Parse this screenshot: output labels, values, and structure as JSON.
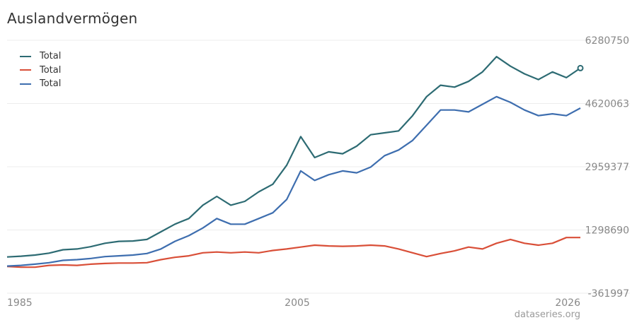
{
  "title": "Auslandvermögen",
  "credit": "dataseries.org",
  "colors": {
    "grid": "#ececec",
    "tick_text": "#888888"
  },
  "chart_data": {
    "type": "line",
    "title": "Auslandvermögen",
    "xlabel": "",
    "ylabel": "",
    "xlim": [
      1985,
      2026
    ],
    "ylim": [
      -361997,
      6280750
    ],
    "x_ticks": [
      "1985",
      "2005",
      "2026"
    ],
    "y_ticks": [
      "6280750",
      "4620063",
      "2959377",
      "1298690",
      "-361997"
    ],
    "y_tick_values": [
      6280750,
      4620063,
      2959377,
      1298690,
      -361997
    ],
    "grid": true,
    "legend_position": "top-left",
    "series": [
      {
        "name": "Total",
        "color": "#2d6b73",
        "points": [
          [
            1985,
            590000
          ],
          [
            1986,
            610000
          ],
          [
            1987,
            640000
          ],
          [
            1988,
            690000
          ],
          [
            1989,
            780000
          ],
          [
            1990,
            800000
          ],
          [
            1991,
            860000
          ],
          [
            1992,
            950000
          ],
          [
            1993,
            1000000
          ],
          [
            1994,
            1010000
          ],
          [
            1995,
            1050000
          ],
          [
            1996,
            1250000
          ],
          [
            1997,
            1450000
          ],
          [
            1998,
            1600000
          ],
          [
            1999,
            1950000
          ],
          [
            2000,
            2180000
          ],
          [
            2001,
            1950000
          ],
          [
            2002,
            2050000
          ],
          [
            2003,
            2300000
          ],
          [
            2004,
            2500000
          ],
          [
            2005,
            3000000
          ],
          [
            2006,
            3750000
          ],
          [
            2007,
            3200000
          ],
          [
            2008,
            3350000
          ],
          [
            2009,
            3300000
          ],
          [
            2010,
            3500000
          ],
          [
            2011,
            3800000
          ],
          [
            2012,
            3850000
          ],
          [
            2013,
            3900000
          ],
          [
            2014,
            4300000
          ],
          [
            2015,
            4800000
          ],
          [
            2016,
            5100000
          ],
          [
            2017,
            5050000
          ],
          [
            2018,
            5200000
          ],
          [
            2019,
            5450000
          ],
          [
            2020,
            5850000
          ],
          [
            2021,
            5600000
          ],
          [
            2022,
            5400000
          ],
          [
            2023,
            5250000
          ],
          [
            2024,
            5450000
          ],
          [
            2025,
            5300000
          ],
          [
            2026,
            5550000
          ]
        ]
      },
      {
        "name": "Total",
        "color": "#d94f38",
        "points": [
          [
            1985,
            340000
          ],
          [
            1986,
            320000
          ],
          [
            1987,
            320000
          ],
          [
            1988,
            370000
          ],
          [
            1989,
            380000
          ],
          [
            1990,
            370000
          ],
          [
            1991,
            400000
          ],
          [
            1992,
            420000
          ],
          [
            1993,
            430000
          ],
          [
            1994,
            430000
          ],
          [
            1995,
            440000
          ],
          [
            1996,
            520000
          ],
          [
            1997,
            580000
          ],
          [
            1998,
            620000
          ],
          [
            1999,
            700000
          ],
          [
            2000,
            720000
          ],
          [
            2001,
            700000
          ],
          [
            2002,
            720000
          ],
          [
            2003,
            700000
          ],
          [
            2004,
            760000
          ],
          [
            2005,
            800000
          ],
          [
            2006,
            850000
          ],
          [
            2007,
            900000
          ],
          [
            2008,
            880000
          ],
          [
            2009,
            870000
          ],
          [
            2010,
            880000
          ],
          [
            2011,
            900000
          ],
          [
            2012,
            880000
          ],
          [
            2013,
            800000
          ],
          [
            2014,
            700000
          ],
          [
            2015,
            600000
          ],
          [
            2016,
            680000
          ],
          [
            2017,
            750000
          ],
          [
            2018,
            850000
          ],
          [
            2019,
            800000
          ],
          [
            2020,
            950000
          ],
          [
            2021,
            1050000
          ],
          [
            2022,
            950000
          ],
          [
            2023,
            900000
          ],
          [
            2024,
            950000
          ],
          [
            2025,
            1100000
          ],
          [
            2026,
            1100000
          ]
        ]
      },
      {
        "name": "Total",
        "color": "#3e6eaf",
        "points": [
          [
            1985,
            350000
          ],
          [
            1986,
            370000
          ],
          [
            1987,
            400000
          ],
          [
            1988,
            440000
          ],
          [
            1989,
            500000
          ],
          [
            1990,
            520000
          ],
          [
            1991,
            550000
          ],
          [
            1992,
            600000
          ],
          [
            1993,
            620000
          ],
          [
            1994,
            640000
          ],
          [
            1995,
            680000
          ],
          [
            1996,
            800000
          ],
          [
            1997,
            1000000
          ],
          [
            1998,
            1150000
          ],
          [
            1999,
            1350000
          ],
          [
            2000,
            1600000
          ],
          [
            2001,
            1450000
          ],
          [
            2002,
            1450000
          ],
          [
            2003,
            1600000
          ],
          [
            2004,
            1750000
          ],
          [
            2005,
            2100000
          ],
          [
            2006,
            2850000
          ],
          [
            2007,
            2600000
          ],
          [
            2008,
            2750000
          ],
          [
            2009,
            2850000
          ],
          [
            2010,
            2800000
          ],
          [
            2011,
            2950000
          ],
          [
            2012,
            3250000
          ],
          [
            2013,
            3400000
          ],
          [
            2014,
            3650000
          ],
          [
            2015,
            4050000
          ],
          [
            2016,
            4450000
          ],
          [
            2017,
            4450000
          ],
          [
            2018,
            4400000
          ],
          [
            2019,
            4600000
          ],
          [
            2020,
            4800000
          ],
          [
            2021,
            4650000
          ],
          [
            2022,
            4450000
          ],
          [
            2023,
            4300000
          ],
          [
            2024,
            4350000
          ],
          [
            2025,
            4300000
          ],
          [
            2026,
            4500000
          ]
        ]
      }
    ]
  }
}
